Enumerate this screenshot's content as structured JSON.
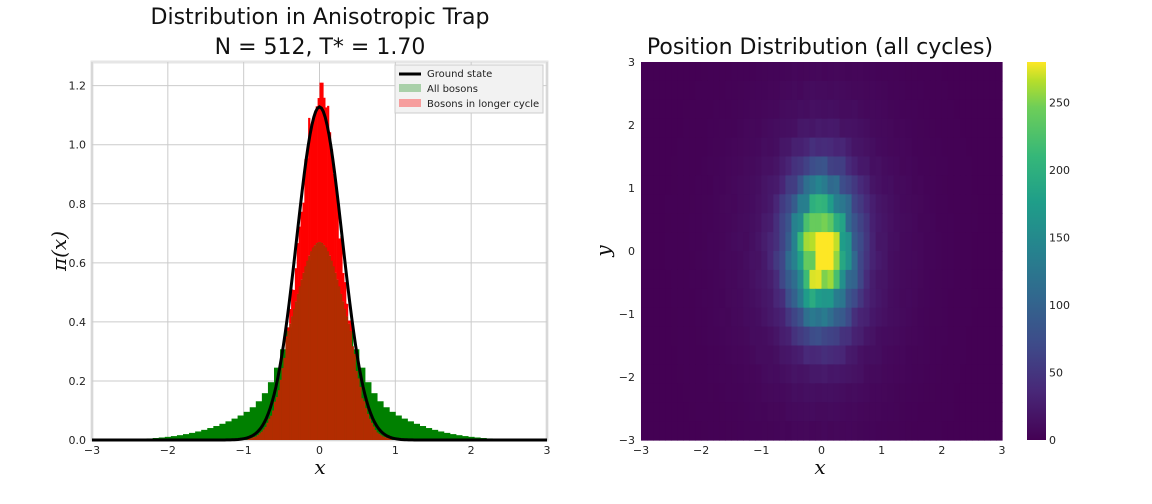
{
  "chart_data": [
    {
      "type": "bar",
      "title": "Distribution in Anisotropic Trap",
      "subtitle": "N = 512, T* = 1.70",
      "xlabel": "x",
      "ylabel": "π(x)",
      "xlim": [
        -3,
        3
      ],
      "ylim": [
        0,
        1.28
      ],
      "xticks": [
        "−3",
        "−2",
        "−1",
        "0",
        "1",
        "2",
        "3"
      ],
      "yticks": [
        "0.0",
        "0.2",
        "0.4",
        "0.6",
        "0.8",
        "1.0",
        "1.2"
      ],
      "grid": true,
      "legend_position": "top-right",
      "legend": [
        "Ground state",
        "All bosons",
        "Bosons in longer cycle"
      ],
      "colors": {
        "ground_state": "#000000",
        "all_bosons": "#008000",
        "longer_cycle": "#ff0000",
        "overlap": "#b22c00"
      },
      "series": [
        {
          "name": "Ground state",
          "kind": "line",
          "model": "gaussian",
          "peak": 1.128,
          "sigma": 0.3
        },
        {
          "name": "All bosons",
          "kind": "histogram",
          "bin_width": 0.08,
          "model": "mixture",
          "narrow_peak": 0.5,
          "narrow_sigma": 0.32,
          "wide_peak": 0.17,
          "wide_sigma": 0.85
        },
        {
          "name": "Bosons in longer cycle",
          "kind": "histogram",
          "bin_width": 0.025,
          "model": "gaussian",
          "peak": 1.12,
          "sigma": 0.28,
          "max_spike": 1.21
        }
      ]
    },
    {
      "type": "heatmap",
      "title": "Position Distribution (all cycles)",
      "xlabel": "x",
      "ylabel": "y",
      "xlim": [
        -3,
        3
      ],
      "ylim": [
        -3,
        3
      ],
      "xticks": [
        "−3",
        "−2",
        "−1",
        "0",
        "1",
        "2",
        "3"
      ],
      "yticks": [
        "−3",
        "−2",
        "−1",
        "0",
        "1",
        "2",
        "3"
      ],
      "x_bins": 60,
      "y_bins": 20,
      "peak_count": 280,
      "sigma_x": 0.35,
      "sigma_y": 0.75,
      "colormap": "viridis",
      "colorbar": {
        "ticks": [
          "0",
          "50",
          "100",
          "150",
          "200",
          "250"
        ],
        "range": [
          0,
          280
        ]
      }
    }
  ]
}
